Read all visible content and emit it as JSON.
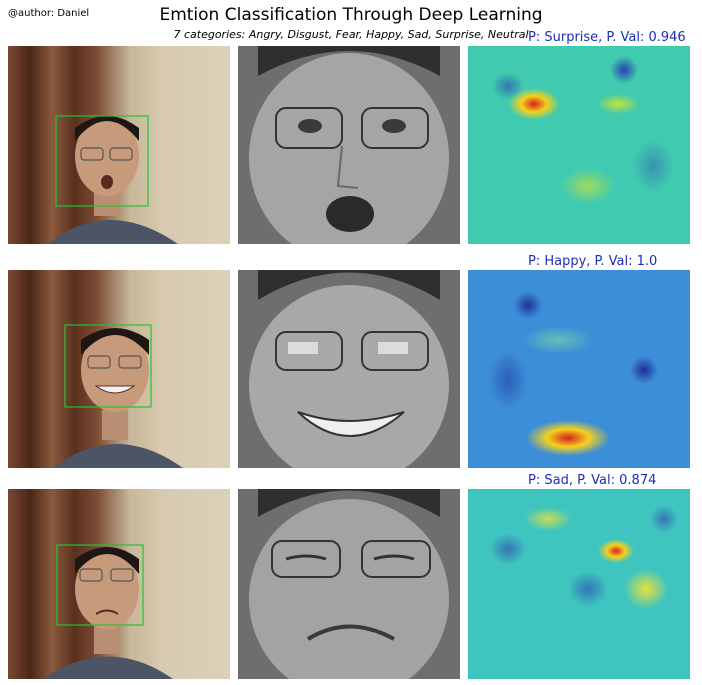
{
  "header": {
    "author": "@author: Daniel",
    "title": "Emtion Classification Through Deep Learning",
    "subtitle": "7 categories: Angry, Disgust, Fear, Happy, Sad, Surprise, Neutral"
  },
  "rows": [
    {
      "prediction": "P: Surprise, P. Val: 0.946",
      "emotion": "surprise"
    },
    {
      "prediction": "P: Happy, P. Val: 1.0",
      "emotion": "happy"
    },
    {
      "prediction": "P: Sad, P. Val: 0.874",
      "emotion": "sad"
    }
  ],
  "colors": {
    "prediction_text": "#1a2fb8",
    "face_box": "#21c431",
    "curtain": "#6b3d2a",
    "shirt": "#4c5566",
    "heatmap_base": "#38c7b8"
  }
}
